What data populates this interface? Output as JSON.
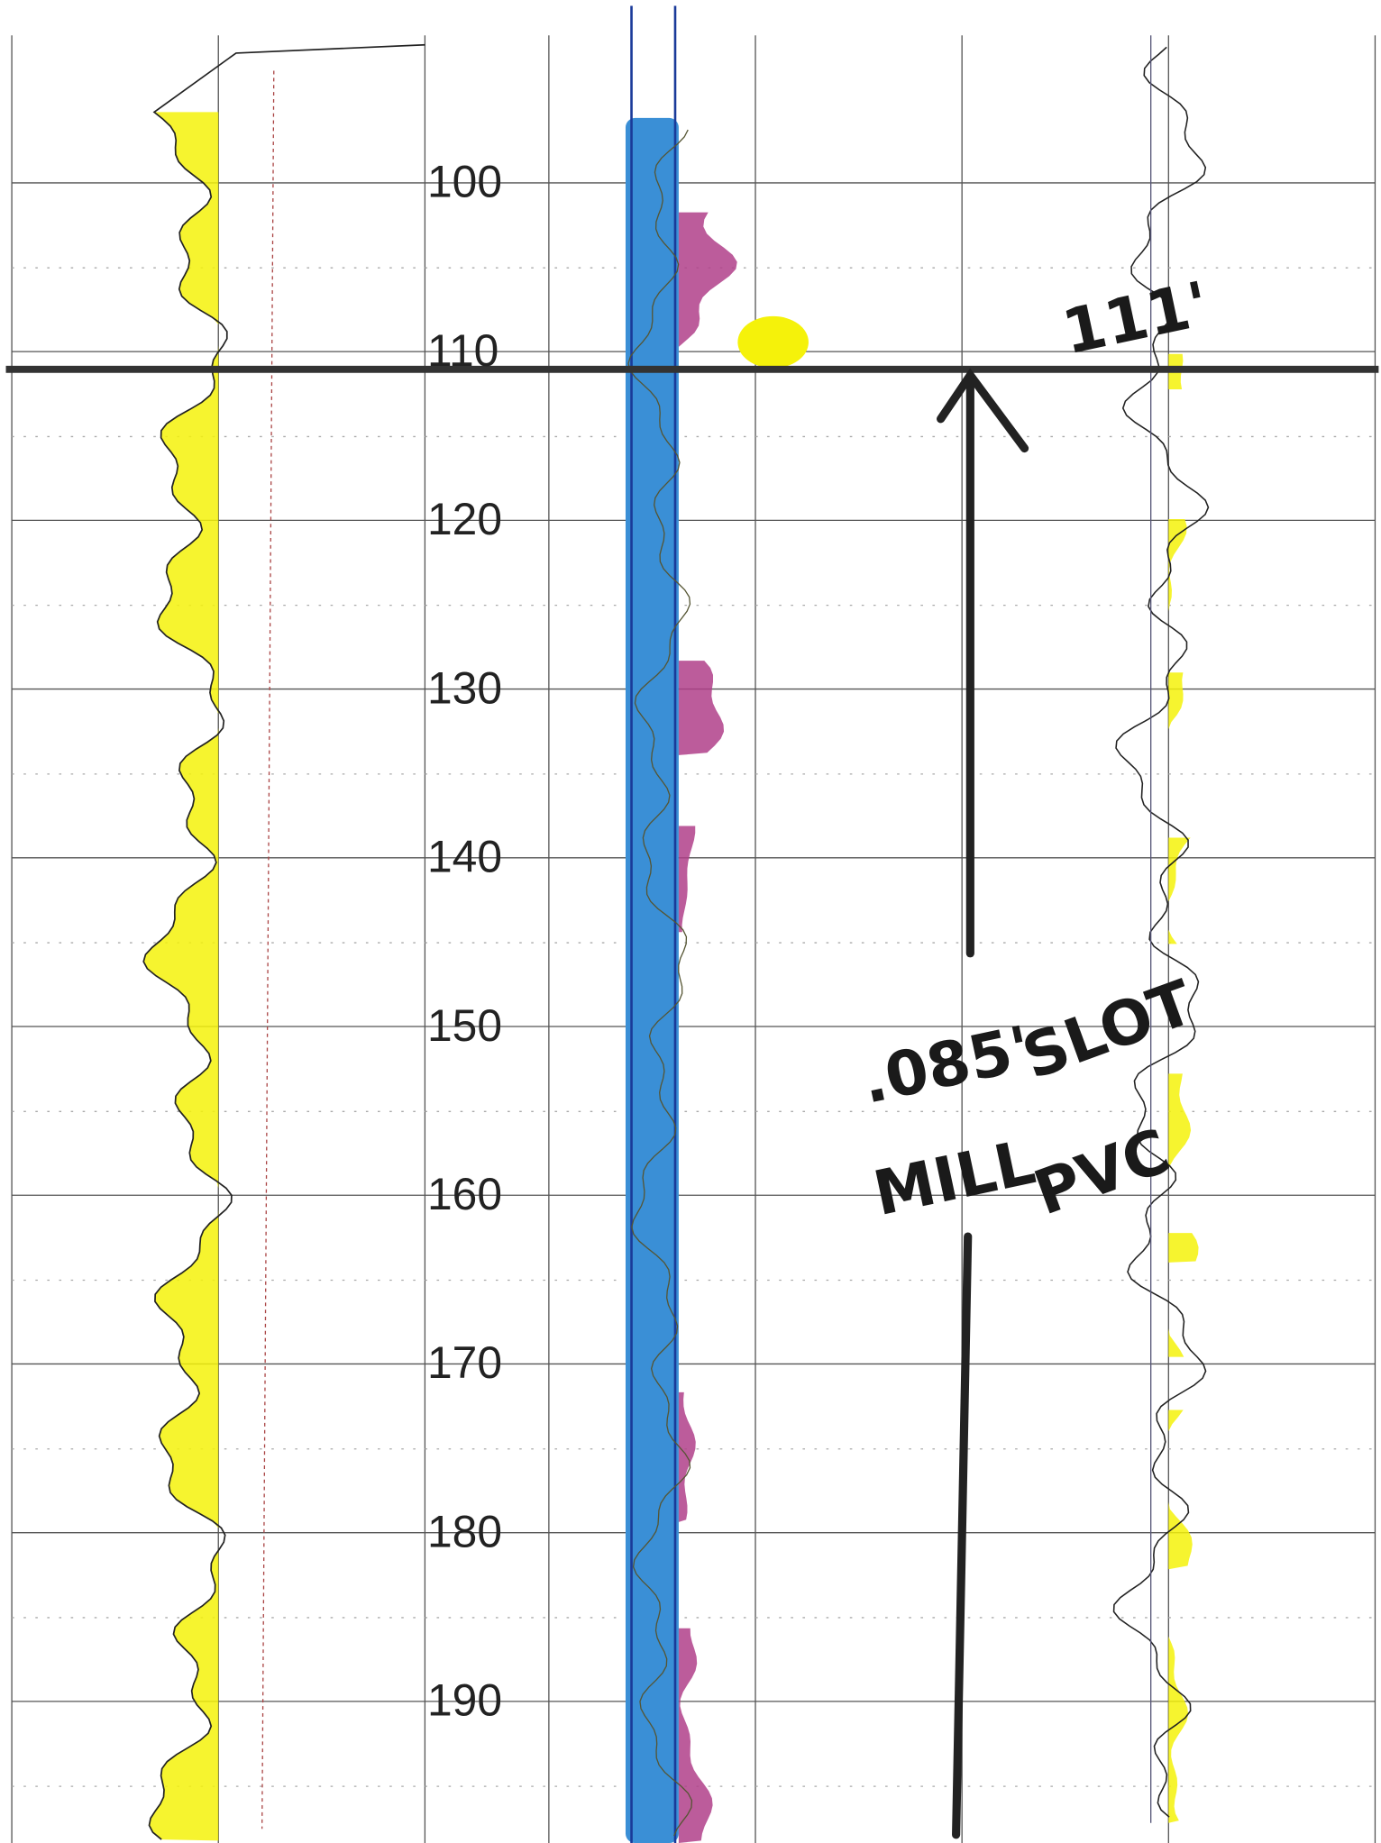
{
  "depth_track": {
    "labels": [
      100,
      110,
      120,
      130,
      140,
      150,
      160,
      170,
      180,
      190
    ]
  },
  "annotations": {
    "depth_marker": "111'",
    "note_size": ".085'",
    "note_mill": "MILL",
    "note_slot": "SLOT",
    "note_pvc": "PVC"
  }
}
